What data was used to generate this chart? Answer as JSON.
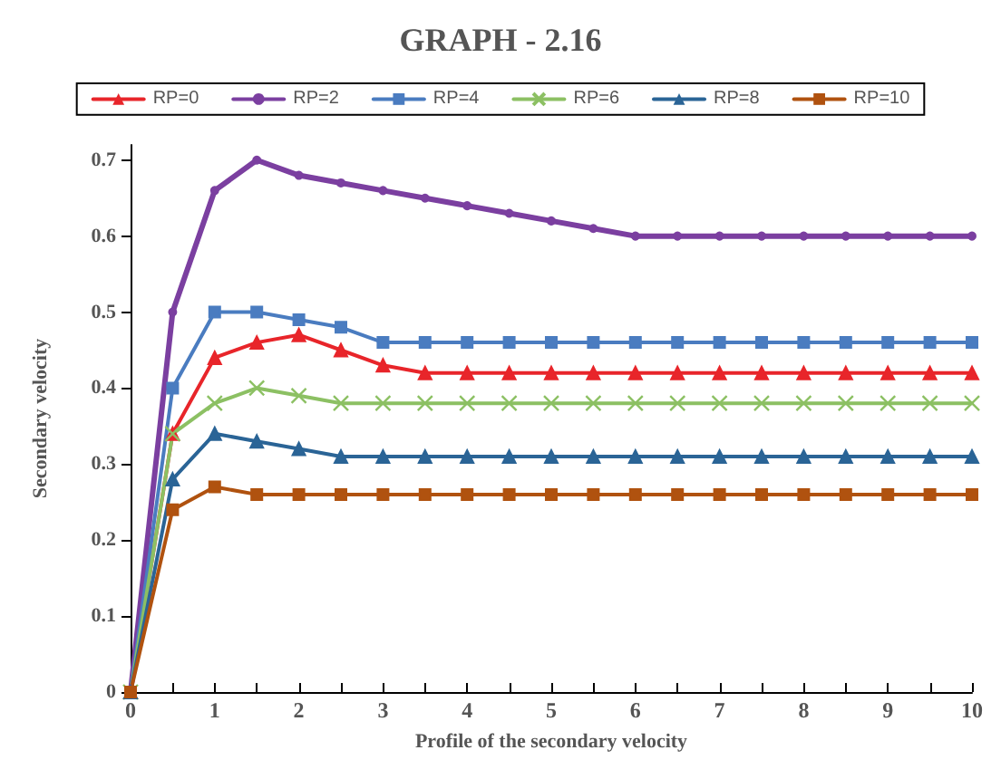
{
  "chart_data": {
    "type": "line",
    "title": "GRAPH - 2.16",
    "xlabel": "Profile of the secondary velocity",
    "ylabel": "Secondary velocity",
    "x": [
      0,
      0.5,
      1,
      1.5,
      2,
      2.5,
      3,
      3.5,
      4,
      4.5,
      5,
      5.5,
      6,
      6.5,
      7,
      7.5,
      8,
      8.5,
      9,
      9.5,
      10
    ],
    "series": [
      {
        "name": "RP=0",
        "color": "#e8252a",
        "marker": "triangle",
        "values": [
          0,
          0.34,
          0.44,
          0.46,
          0.47,
          0.45,
          0.43,
          0.42,
          0.42,
          0.42,
          0.42,
          0.42,
          0.42,
          0.42,
          0.42,
          0.42,
          0.42,
          0.42,
          0.42,
          0.42,
          0.42
        ]
      },
      {
        "name": "RP=2",
        "color": "#7b3fa0",
        "marker": "circle",
        "values": [
          0,
          0.5,
          0.66,
          0.7,
          0.68,
          0.67,
          0.66,
          0.65,
          0.64,
          0.63,
          0.62,
          0.61,
          0.6,
          0.6,
          0.6,
          0.6,
          0.6,
          0.6,
          0.6,
          0.6,
          0.6
        ]
      },
      {
        "name": "RP=4",
        "color": "#4a7cc0",
        "marker": "square",
        "values": [
          0,
          0.4,
          0.5,
          0.5,
          0.49,
          0.48,
          0.46,
          0.46,
          0.46,
          0.46,
          0.46,
          0.46,
          0.46,
          0.46,
          0.46,
          0.46,
          0.46,
          0.46,
          0.46,
          0.46,
          0.46
        ]
      },
      {
        "name": "RP=6",
        "color": "#8cc063",
        "marker": "cross",
        "values": [
          0,
          0.34,
          0.38,
          0.4,
          0.39,
          0.38,
          0.38,
          0.38,
          0.38,
          0.38,
          0.38,
          0.38,
          0.38,
          0.38,
          0.38,
          0.38,
          0.38,
          0.38,
          0.38,
          0.38,
          0.38
        ]
      },
      {
        "name": "RP=8",
        "color": "#2a6496",
        "marker": "triangle",
        "values": [
          0,
          0.28,
          0.34,
          0.33,
          0.32,
          0.31,
          0.31,
          0.31,
          0.31,
          0.31,
          0.31,
          0.31,
          0.31,
          0.31,
          0.31,
          0.31,
          0.31,
          0.31,
          0.31,
          0.31,
          0.31
        ]
      },
      {
        "name": "RP=10",
        "color": "#b0520f",
        "marker": "square",
        "values": [
          0,
          0.24,
          0.27,
          0.26,
          0.26,
          0.26,
          0.26,
          0.26,
          0.26,
          0.26,
          0.26,
          0.26,
          0.26,
          0.26,
          0.26,
          0.26,
          0.26,
          0.26,
          0.26,
          0.26,
          0.26
        ]
      }
    ],
    "xlim": [
      0,
      10
    ],
    "xticks": [
      0,
      {
        "value": 0.5,
        "label": null
      },
      1,
      {
        "value": 1.5,
        "label": null
      },
      2,
      {
        "value": 2.5,
        "label": null
      },
      3,
      {
        "value": 3.5,
        "label": null
      },
      4,
      {
        "value": 4.5,
        "label": null
      },
      5,
      {
        "value": 5.5,
        "label": null
      },
      6,
      {
        "value": 6.5,
        "label": null
      },
      7,
      {
        "value": 7.5,
        "label": null
      },
      8,
      {
        "value": 8.5,
        "label": null
      },
      9,
      {
        "value": 9.5,
        "label": null
      },
      10
    ],
    "ylim": [
      0,
      0.72
    ],
    "yticks": [
      0,
      0.1,
      0.2,
      0.3,
      0.4,
      0.5,
      0.6,
      0.7
    ],
    "grid": false,
    "legend": "top",
    "line_style": "solid"
  }
}
